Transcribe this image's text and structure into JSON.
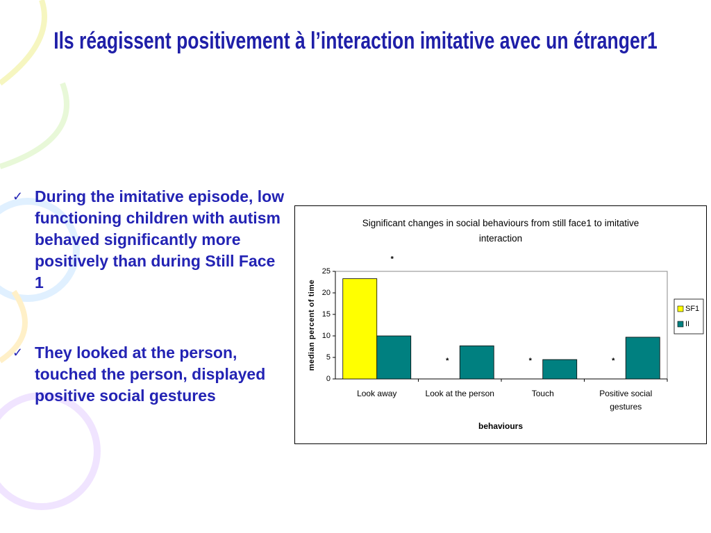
{
  "slide": {
    "title": "Ils réagissent positivement à l’interaction imitative avec un étranger1",
    "bullets": [
      "During the imitative episode, low functioning children with autism behaved significantly more positively than during Still Face 1",
      "They looked at the person, touched the person, displayed positive social gestures"
    ]
  },
  "chart_data": {
    "type": "bar",
    "title": "Significant changes in social behaviours from still face1 to imitative interaction",
    "x_label": "behaviours",
    "y_label": "median percent of time",
    "categories": [
      "Look away",
      "Look at the person",
      "Touch",
      "Positive social gestures"
    ],
    "series": [
      {
        "name": "SF1",
        "color": "#ffff00",
        "values": [
          23.3,
          0,
          0,
          0
        ]
      },
      {
        "name": "II",
        "color": "#008080",
        "values": [
          10,
          7.7,
          4.5,
          9.7
        ]
      }
    ],
    "annotations": [
      "*",
      "*",
      "*",
      "*"
    ],
    "ylim": [
      0,
      25
    ],
    "yticks": [
      0,
      5,
      10,
      15,
      20,
      25
    ],
    "grid": false,
    "legend": "right"
  }
}
